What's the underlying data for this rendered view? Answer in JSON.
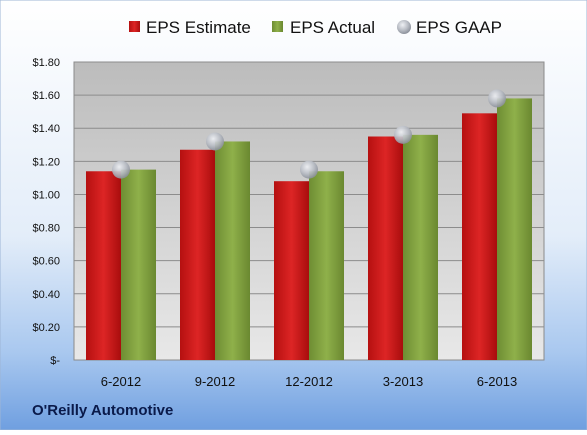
{
  "chart_data": {
    "type": "bar",
    "title": "",
    "company": "O'Reilly Automotive",
    "categories": [
      "6-2012",
      "9-2012",
      "12-2012",
      "3-2013",
      "6-2013"
    ],
    "series": [
      {
        "name": "EPS Estimate",
        "kind": "bar",
        "color": "#cc1f1f",
        "values": [
          1.14,
          1.27,
          1.08,
          1.35,
          1.49
        ]
      },
      {
        "name": "EPS Actual",
        "kind": "bar",
        "color": "#7f9f3f",
        "values": [
          1.15,
          1.32,
          1.14,
          1.36,
          1.58
        ]
      },
      {
        "name": "EPS GAAP",
        "kind": "marker",
        "color": "#b8bcc4",
        "values": [
          1.15,
          1.32,
          1.15,
          1.36,
          1.58
        ]
      }
    ],
    "yticks": [
      "$-",
      "$0.20",
      "$0.40",
      "$0.60",
      "$0.80",
      "$1.00",
      "$1.20",
      "$1.40",
      "$1.60",
      "$1.80"
    ],
    "ylim": [
      0,
      1.8
    ],
    "grid": true,
    "legend": "top"
  }
}
